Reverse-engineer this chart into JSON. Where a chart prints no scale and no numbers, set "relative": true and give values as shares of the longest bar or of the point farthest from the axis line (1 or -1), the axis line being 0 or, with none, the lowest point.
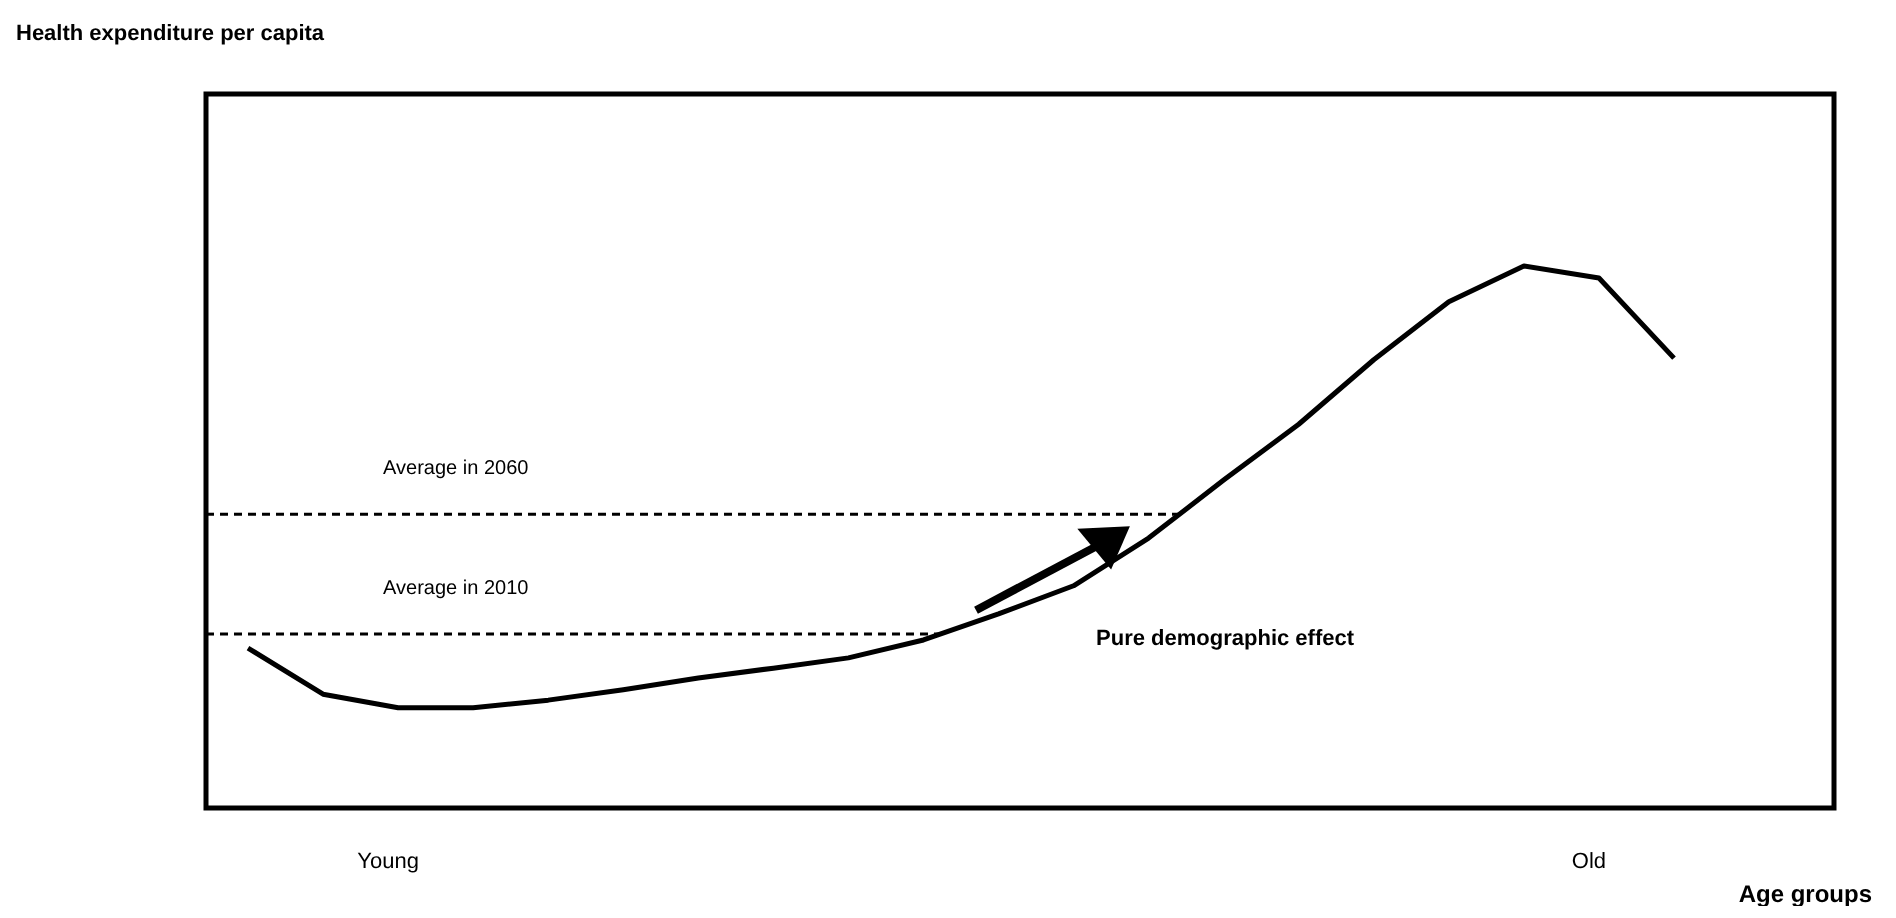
{
  "chart_data": {
    "type": "line",
    "relative": true,
    "title": "Health expenditure per capita",
    "xlabel": "Age groups",
    "categories": [
      null,
      null,
      "Young",
      null,
      null,
      null,
      null,
      null,
      null,
      null,
      null,
      null,
      null,
      null,
      null,
      null,
      null,
      null,
      "Old",
      null
    ],
    "series": [
      {
        "color": "#000000",
        "values": [
          0.295,
          0.21,
          0.185,
          0.185,
          0.199,
          0.218,
          0.24,
          0.258,
          0.277,
          0.31,
          0.358,
          0.41,
          0.498,
          0.605,
          0.708,
          0.827,
          0.934,
          1,
          0.978,
          0.83
        ]
      }
    ],
    "ref_lines": [
      {
        "axis": "y",
        "value": 0.321,
        "label": "Average in 2010",
        "line_style": "dashed"
      },
      {
        "axis": "y",
        "value": 0.542,
        "label": "Average in 2060",
        "line_style": "dashed"
      }
    ],
    "annotations": [
      "Pure demographic effect"
    ],
    "marker": "none",
    "line_style": "solid"
  }
}
